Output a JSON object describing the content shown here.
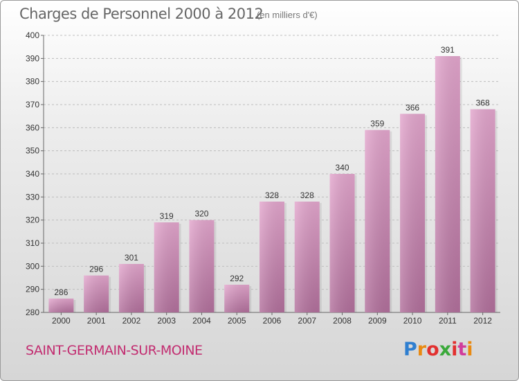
{
  "header": {
    "title": "Charges de Personnel 2000 à 2012",
    "subtitle": "(en milliers d'€)"
  },
  "footer": {
    "commune": "SAINT-GERMAIN-SUR-MOINE",
    "logo_text": "Proxiti"
  },
  "colors": {
    "bar_top": "#e3a6cd",
    "bar_bottom": "#b2709c",
    "commune_text": "#c22c70"
  },
  "chart_data": {
    "type": "bar",
    "title": "Charges de Personnel 2000 à 2012",
    "subtitle": "(en milliers d'€)",
    "categories": [
      "2000",
      "2001",
      "2002",
      "2003",
      "2004",
      "2005",
      "2006",
      "2007",
      "2008",
      "2009",
      "2010",
      "2011",
      "2012"
    ],
    "values": [
      286,
      296,
      301,
      319,
      320,
      292,
      328,
      328,
      340,
      359,
      366,
      391,
      368
    ],
    "ylim": [
      280,
      400
    ],
    "yticks": [
      280,
      290,
      300,
      310,
      320,
      330,
      340,
      350,
      360,
      370,
      380,
      390,
      400
    ],
    "grid": true,
    "data_labels": true
  }
}
